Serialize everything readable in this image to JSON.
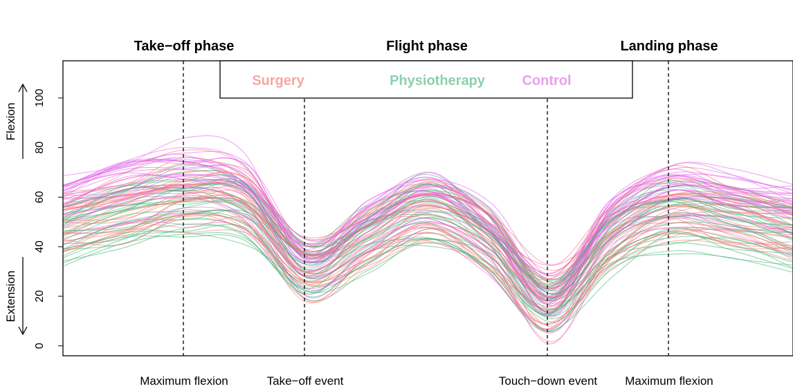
{
  "chart_data": {
    "type": "line",
    "title": "",
    "phases": [
      "Take−off phase",
      "Flight phase",
      "Landing phase"
    ],
    "events": [
      "Maximum flexion",
      "Take−off event",
      "Touch−down event",
      "Maximum flexion"
    ],
    "ylabel_top": "Flexion",
    "ylabel_bottom": "Extension",
    "yticks": [
      "0",
      "20",
      "40",
      "60",
      "80",
      "100"
    ],
    "ylim": [
      -4,
      115
    ],
    "xlim": [
      0,
      1
    ],
    "event_x": [
      0.167,
      0.333,
      0.667,
      0.833
    ],
    "legend": [
      {
        "label": "Surgery",
        "color": "#F8766D"
      },
      {
        "label": "Physiotherapy",
        "color": "#3CB371"
      },
      {
        "label": "Control",
        "color": "#E060E8"
      }
    ],
    "series": [
      {
        "name": "Surgery",
        "mean": [
          [
            0.0,
            49
          ],
          [
            0.083,
            56
          ],
          [
            0.167,
            62
          ],
          [
            0.25,
            58
          ],
          [
            0.333,
            31
          ],
          [
            0.417,
            44
          ],
          [
            0.5,
            55
          ],
          [
            0.583,
            43
          ],
          [
            0.667,
            18
          ],
          [
            0.75,
            44
          ],
          [
            0.833,
            57
          ],
          [
            0.917,
            53
          ],
          [
            1.0,
            47
          ]
        ]
      },
      {
        "name": "Physiotherapy",
        "mean": [
          [
            0.0,
            45
          ],
          [
            0.083,
            52
          ],
          [
            0.167,
            57
          ],
          [
            0.25,
            54
          ],
          [
            0.333,
            30
          ],
          [
            0.417,
            43
          ],
          [
            0.5,
            54
          ],
          [
            0.583,
            42
          ],
          [
            0.667,
            17
          ],
          [
            0.75,
            42
          ],
          [
            0.833,
            53
          ],
          [
            0.917,
            49
          ],
          [
            1.0,
            44
          ]
        ]
      },
      {
        "name": "Control",
        "mean": [
          [
            0.0,
            55
          ],
          [
            0.083,
            61
          ],
          [
            0.167,
            65
          ],
          [
            0.25,
            60
          ],
          [
            0.333,
            31
          ],
          [
            0.417,
            46
          ],
          [
            0.5,
            57
          ],
          [
            0.583,
            43
          ],
          [
            0.667,
            16
          ],
          [
            0.75,
            47
          ],
          [
            0.833,
            59
          ],
          [
            0.917,
            56
          ],
          [
            1.0,
            51
          ]
        ]
      }
    ]
  }
}
